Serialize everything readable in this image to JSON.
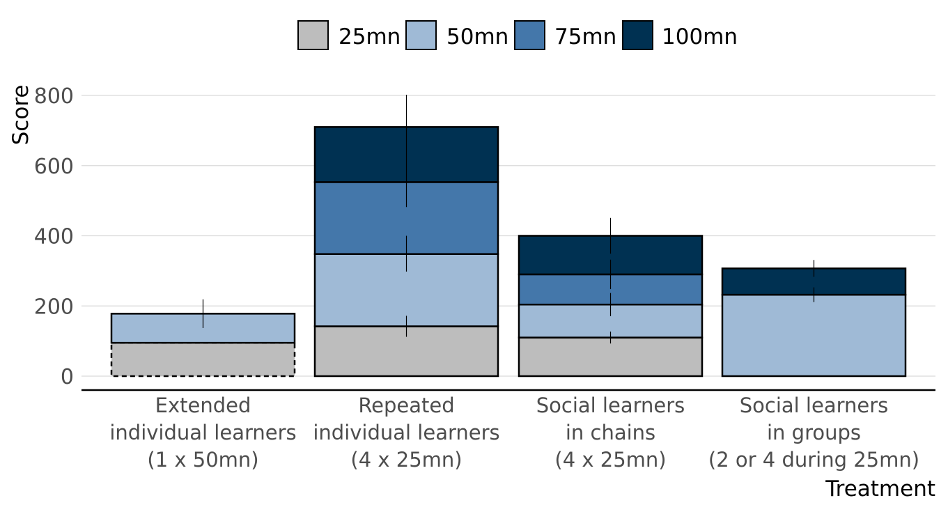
{
  "chart_data": {
    "type": "bar",
    "stacked": true,
    "xlabel": "Treatment",
    "ylabel": "Score",
    "ylim": [
      0,
      800
    ],
    "yticks": [
      0,
      200,
      400,
      600,
      800
    ],
    "grid": true,
    "legend_position": "top",
    "legend": [
      {
        "name": "25mn",
        "color": "#bdbdbd"
      },
      {
        "name": "50mn",
        "color": "#9fbad6"
      },
      {
        "name": "75mn",
        "color": "#4477aa"
      },
      {
        "name": "100mn",
        "color": "#003152"
      }
    ],
    "categories": [
      {
        "lines": [
          "Extended",
          "individual learners",
          "(1 x 50mn)"
        ]
      },
      {
        "lines": [
          "Repeated",
          "individual learners",
          "(4 x 25mn)"
        ]
      },
      {
        "lines": [
          "Social learners",
          "in chains",
          "(4 x 25mn)"
        ]
      },
      {
        "lines": [
          "Social learners",
          "in groups",
          "(2 or 4 during 25mn)"
        ]
      }
    ],
    "stacks": [
      {
        "segments": [
          {
            "series": "25mn",
            "from": 0,
            "to": 95,
            "dashed": true
          },
          {
            "series": "50mn",
            "from": 95,
            "to": 178
          }
        ],
        "errorbars": [
          {
            "y": 178,
            "low": 137,
            "high": 219
          }
        ]
      },
      {
        "segments": [
          {
            "series": "25mn",
            "from": 0,
            "to": 142
          },
          {
            "series": "50mn",
            "from": 142,
            "to": 348
          },
          {
            "series": "75mn",
            "from": 348,
            "to": 553
          },
          {
            "series": "100mn",
            "from": 553,
            "to": 710
          }
        ],
        "errorbars": [
          {
            "y": 142,
            "low": 112,
            "high": 172
          },
          {
            "y": 348,
            "low": 298,
            "high": 400
          },
          {
            "y": 710,
            "low": 482,
            "high": 802
          }
        ]
      },
      {
        "segments": [
          {
            "series": "25mn",
            "from": 0,
            "to": 110
          },
          {
            "series": "50mn",
            "from": 110,
            "to": 204
          },
          {
            "series": "75mn",
            "from": 204,
            "to": 290
          },
          {
            "series": "100mn",
            "from": 290,
            "to": 400
          }
        ],
        "errorbars": [
          {
            "y": 110,
            "low": 93,
            "high": 127
          },
          {
            "y": 204,
            "low": 171,
            "high": 237
          },
          {
            "y": 290,
            "low": 248,
            "high": 332
          },
          {
            "y": 400,
            "low": 349,
            "high": 451
          }
        ]
      },
      {
        "segments": [
          {
            "series": "50mn",
            "from": 0,
            "to": 232
          },
          {
            "series": "100mn",
            "from": 232,
            "to": 307
          }
        ],
        "errorbars": [
          {
            "y": 232,
            "low": 211,
            "high": 253
          },
          {
            "y": 307,
            "low": 283,
            "high": 331
          }
        ]
      }
    ]
  }
}
